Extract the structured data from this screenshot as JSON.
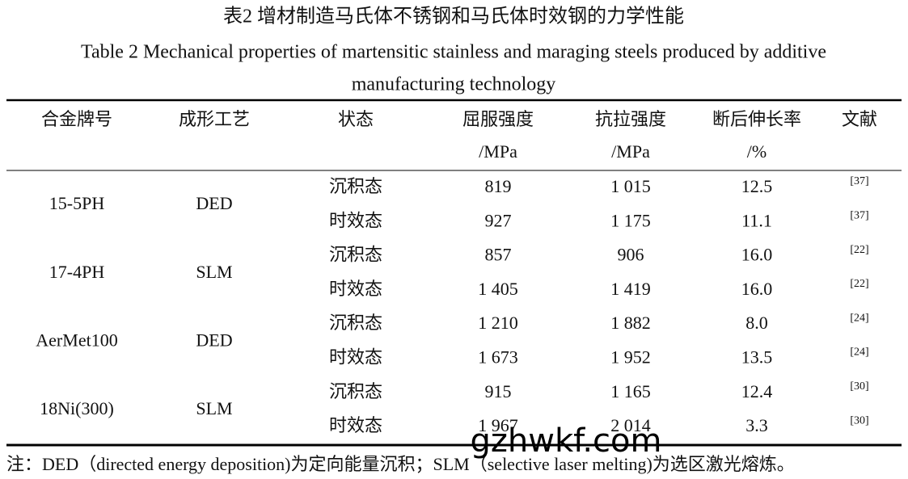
{
  "title_cn": "表2  增材制造马氏体不锈钢和马氏体时效钢的力学性能",
  "title_en": [
    "Table 2 Mechanical properties of martensitic stainless and maraging steels produced by additive",
    "manufacturing technology"
  ],
  "table": {
    "headers": [
      [
        "合金牌号"
      ],
      [
        "成形工艺"
      ],
      [
        "状态"
      ],
      [
        "屈服强度",
        "/MPa"
      ],
      [
        "抗拉强度",
        "/MPa"
      ],
      [
        "断后伸长率",
        "/%"
      ],
      [
        "文献"
      ]
    ],
    "groups": [
      {
        "alloy": "15-5PH",
        "process": "DED",
        "rows": [
          [
            "沉积态",
            "819",
            "1 015",
            "12.5",
            "[37]"
          ],
          [
            "时效态",
            "927",
            "1 175",
            "11.1",
            "[37]"
          ]
        ]
      },
      {
        "alloy": "17-4PH",
        "process": "SLM",
        "rows": [
          [
            "沉积态",
            "857",
            "906",
            "16.0",
            "[22]"
          ],
          [
            "时效态",
            "1 405",
            "1 419",
            "16.0",
            "[22]"
          ]
        ]
      },
      {
        "alloy": "AerMet100",
        "process": "DED",
        "rows": [
          [
            "沉积态",
            "1 210",
            "1 882",
            "8.0",
            "[24]"
          ],
          [
            "时效态",
            "1 673",
            "1 952",
            "13.5",
            "[24]"
          ]
        ]
      },
      {
        "alloy": "18Ni(300)",
        "process": "SLM",
        "rows": [
          [
            "沉积态",
            "915",
            "1 165",
            "12.4",
            "[30]"
          ],
          [
            "时效态",
            "1 967",
            "2 014",
            "3.3",
            "[30]"
          ]
        ]
      }
    ]
  },
  "note": "注：DED（directed energy deposition)为定向能量沉积；SLM（selective laser melting)为选区激光熔炼。",
  "watermark": "gzhwkf.com"
}
